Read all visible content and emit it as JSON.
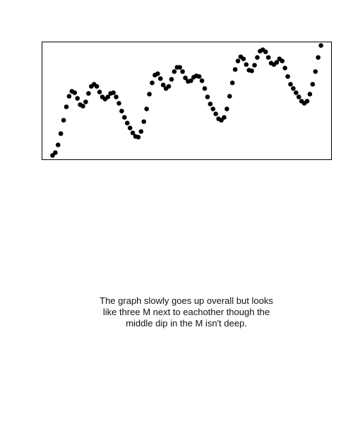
{
  "chart_data": {
    "type": "scatter",
    "color": "#000000",
    "x": [
      0,
      1,
      2,
      3,
      4,
      5,
      6,
      7,
      8,
      9,
      10,
      11,
      12,
      13,
      14,
      15,
      16,
      17,
      18,
      19,
      20,
      21,
      22,
      23,
      24,
      25,
      26,
      27,
      28,
      29,
      30,
      31,
      32,
      33,
      34,
      35,
      36,
      37,
      38,
      39,
      40,
      41,
      42,
      43,
      44,
      45,
      46,
      47,
      48,
      49,
      50,
      51,
      52,
      53,
      54,
      55,
      56,
      57,
      58,
      59,
      60,
      61,
      62,
      63,
      64,
      65,
      66,
      67,
      68,
      69,
      70,
      71,
      72,
      73,
      74,
      75,
      76,
      77,
      78,
      79,
      80,
      81,
      82,
      83,
      84,
      85,
      86,
      87,
      88,
      89,
      90,
      91,
      92,
      93,
      94,
      95,
      96,
      97
    ],
    "values": [
      6,
      10,
      21,
      37,
      56,
      75,
      90,
      97,
      95,
      87,
      78,
      76,
      82,
      94,
      104,
      107,
      104,
      96,
      89,
      86,
      89,
      94,
      95,
      89,
      80,
      69,
      60,
      52,
      45,
      38,
      33,
      32,
      40,
      54,
      72,
      93,
      109,
      120,
      122,
      115,
      106,
      101,
      104,
      114,
      125,
      131,
      131,
      125,
      116,
      111,
      112,
      117,
      119,
      118,
      112,
      101,
      89,
      79,
      72,
      65,
      58,
      56,
      60,
      72,
      90,
      109,
      128,
      140,
      146,
      143,
      135,
      127,
      126,
      134,
      145,
      154,
      156,
      153,
      145,
      137,
      135,
      138,
      143,
      140,
      130,
      118,
      107,
      101,
      95,
      89,
      83,
      80,
      83,
      93,
      107,
      125,
      145,
      162
    ],
    "xlim": [
      -3.8,
      100.8
    ],
    "ylim": [
      0,
      167
    ]
  },
  "caption": [
    "The graph slowly goes up overall but looks",
    "like three M next to eachother though the",
    "middle dip in the M isn't deep."
  ]
}
